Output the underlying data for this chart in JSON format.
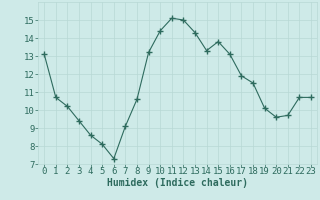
{
  "x": [
    0,
    1,
    2,
    3,
    4,
    5,
    6,
    7,
    8,
    9,
    10,
    11,
    12,
    13,
    14,
    15,
    16,
    17,
    18,
    19,
    20,
    21,
    22,
    23
  ],
  "y": [
    13.1,
    10.7,
    10.2,
    9.4,
    8.6,
    8.1,
    7.3,
    9.1,
    10.6,
    13.2,
    14.4,
    15.1,
    15.0,
    14.3,
    13.3,
    13.8,
    13.1,
    11.9,
    11.5,
    10.1,
    9.6,
    9.7,
    10.7,
    10.7
  ],
  "xlabel": "Humidex (Indice chaleur)",
  "ylim": [
    7,
    16
  ],
  "yticks": [
    7,
    8,
    9,
    10,
    11,
    12,
    13,
    14,
    15
  ],
  "xticks": [
    0,
    1,
    2,
    3,
    4,
    5,
    6,
    7,
    8,
    9,
    10,
    11,
    12,
    13,
    14,
    15,
    16,
    17,
    18,
    19,
    20,
    21,
    22,
    23
  ],
  "line_color": "#2e6b5e",
  "marker": "+",
  "marker_size": 4,
  "bg_color": "#ceeae8",
  "grid_color": "#b8d8d5",
  "tick_fontsize": 6.5,
  "xlabel_fontsize": 7.0
}
